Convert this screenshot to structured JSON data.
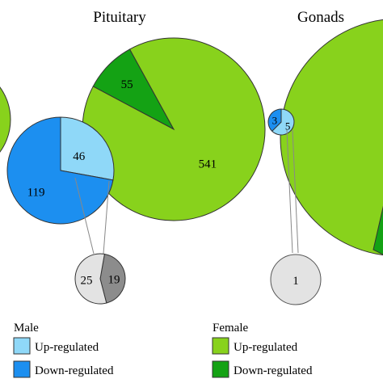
{
  "chart_data": {
    "type": "pie",
    "panels": [
      {
        "title": "Pituitary",
        "male": {
          "up": 46,
          "down": 119
        },
        "female": {
          "up": 541,
          "down": 55
        },
        "overlap": {
          "a": 25,
          "b": 19
        }
      },
      {
        "title": "Gonads",
        "male": {
          "up": 5,
          "down": 3
        },
        "female": {
          "up": null,
          "down": null
        },
        "overlap": {
          "a": 1,
          "b": null
        }
      }
    ],
    "legend": {
      "male": {
        "title": "Male",
        "up": "Up-regulated",
        "down": "Down-regulated"
      },
      "female": {
        "title": "Female",
        "up": "Up-regulated",
        "down": "Down-regulated"
      }
    }
  },
  "colors": {
    "male_up": "#8fd8f8",
    "male_down": "#1c8ff0",
    "female_up": "#88d21c",
    "female_down": "#14a214",
    "overlap_light": "#e3e3e3",
    "overlap_dark": "#8c8c8c"
  }
}
